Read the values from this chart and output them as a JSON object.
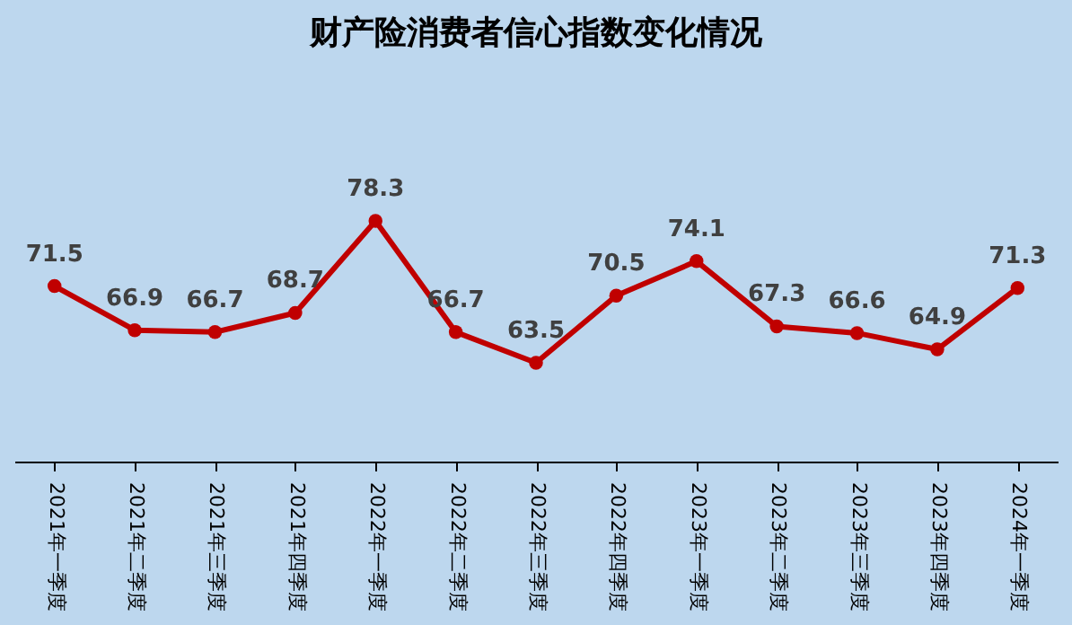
{
  "chart_data": {
    "type": "line",
    "title": "财产险消费者信心指数变化情况",
    "categories": [
      "2021年一季度",
      "2021年二季度",
      "2021年三季度",
      "2021年四季度",
      "2022年一季度",
      "2022年二季度",
      "2022年三季度",
      "2022年四季度",
      "2023年一季度",
      "2023年二季度",
      "2023年三季度",
      "2023年四季度",
      "2024年一季度"
    ],
    "series": [
      {
        "color": "#c00000",
        "values": [
          71.5,
          66.9,
          66.7,
          68.7,
          78.3,
          66.7,
          63.5,
          70.5,
          74.1,
          67.3,
          66.6,
          64.9,
          71.3
        ]
      }
    ],
    "tick_labels": "x",
    "data_labels": true,
    "marker": "circle"
  }
}
